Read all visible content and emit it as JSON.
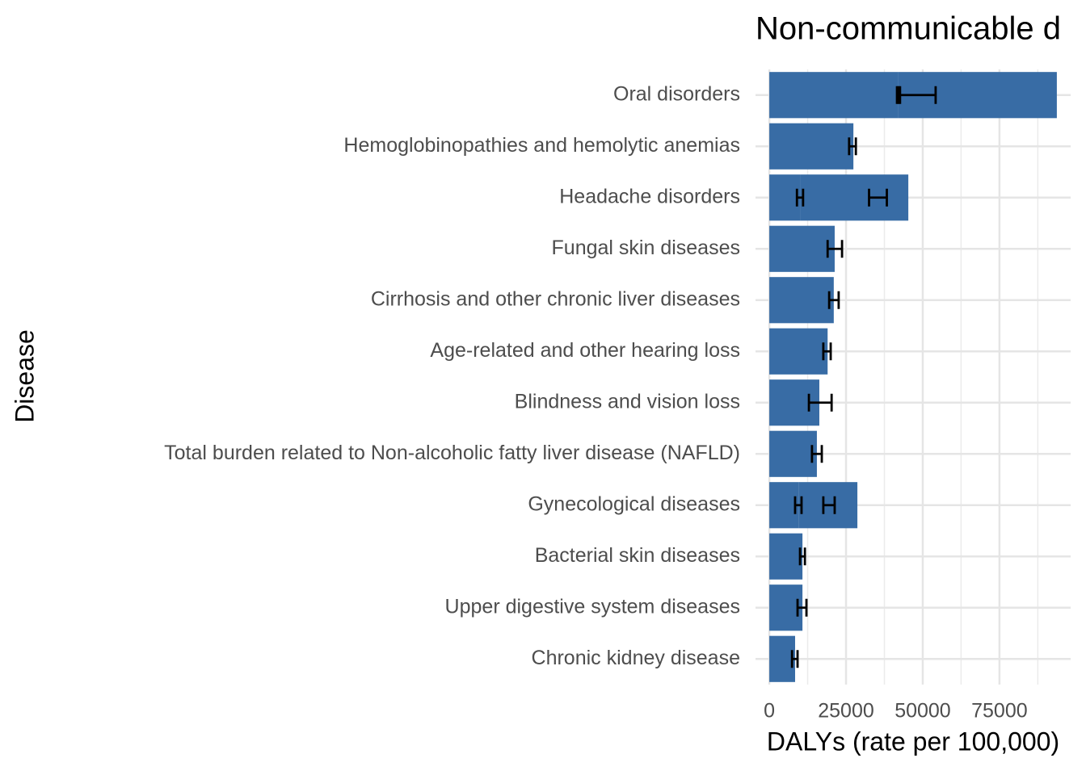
{
  "chart_data": {
    "type": "bar",
    "orientation": "horizontal",
    "stacked": true,
    "title": "Non-communicable d",
    "x_label": "DALYs (rate per 100,000)",
    "y_label": "Disease",
    "categories": [
      "Oral disorders",
      "Hemoglobinopathies and hemolytic anemias",
      "Headache disorders",
      "Fungal skin diseases",
      "Cirrhosis and other chronic liver diseases",
      "Age-related and other hearing loss",
      "Blindness and vision loss",
      "Total burden related to Non-alcoholic fatty liver disease (NAFLD)",
      "Gynecological diseases",
      "Bacterial skin diseases",
      "Upper digestive system diseases",
      "Chronic kidney disease"
    ],
    "series": [
      {
        "color": "#386ca5",
        "values": [
          42000,
          27400,
          10000,
          21300,
          21000,
          19000,
          16300,
          15500,
          9500,
          10800,
          10800,
          8400
        ],
        "lower": [
          41600,
          26000,
          9000,
          19000,
          19500,
          17600,
          12900,
          13900,
          8400,
          10000,
          9200,
          7400
        ],
        "upper": [
          42600,
          28200,
          11000,
          23700,
          22600,
          20000,
          20300,
          17100,
          10500,
          11600,
          12100,
          9200
        ]
      },
      {
        "color": "#386ca5",
        "values": [
          51700,
          null,
          35300,
          null,
          null,
          null,
          null,
          null,
          19200,
          null,
          null,
          null
        ],
        "lower": [
          42100,
          null,
          32500,
          null,
          null,
          null,
          null,
          null,
          17600,
          null,
          null,
          null
        ],
        "upper": [
          54200,
          null,
          38300,
          null,
          null,
          null,
          null,
          null,
          21300,
          null,
          null,
          null
        ]
      }
    ],
    "error_color": "#000000",
    "xlim": [
      -4500,
      98200
    ],
    "xticks": [
      0,
      25000,
      50000,
      75000
    ],
    "x_minor_ticks": [
      12500,
      37500,
      62500,
      87500
    ],
    "grid": true
  }
}
